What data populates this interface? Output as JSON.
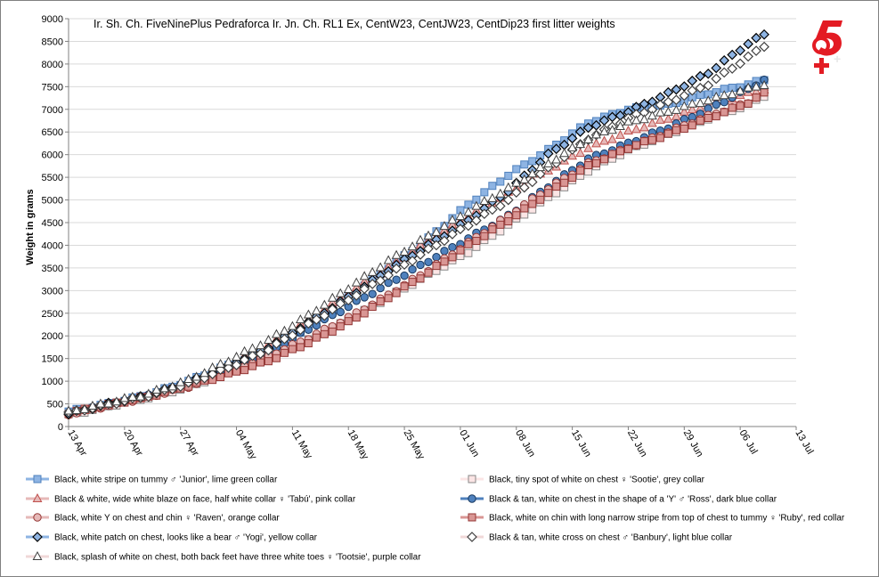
{
  "chart_data": {
    "type": "line",
    "title": "Ir. Sh. Ch. FiveNinePlus Pedraforca Ir. Jn. Ch. RL1 Ex, CentW23, CentJW23, CentDip23 first litter weights",
    "xlabel": "",
    "ylabel": "Weight in grams",
    "ylim": [
      0,
      9000
    ],
    "yticks": [
      "0",
      "500",
      "1000",
      "1500",
      "2000",
      "2500",
      "3000",
      "3500",
      "4000",
      "4500",
      "5000",
      "5500",
      "6000",
      "6500",
      "7000",
      "7500",
      "8000",
      "8500",
      "9000"
    ],
    "xticks": [
      "13 Apr",
      "20 Apr",
      "27 Apr",
      "04 May",
      "11 May",
      "18 May",
      "25 May",
      "01 Jun",
      "08 Jun",
      "15 Jun",
      "22 Jun",
      "29 Jun",
      "06 Jul",
      "13 Jul"
    ],
    "x_range_days": [
      0,
      91
    ],
    "grid": "horizontal",
    "legend_position": "bottom",
    "series": [
      {
        "name": "Black, white stripe on tummy ♂ 'Junior', lime green collar",
        "color": "#8eb4e3",
        "edge": "#4f81bd",
        "marker": "square",
        "x": [
          0,
          5,
          10,
          15,
          20,
          25,
          30,
          35,
          40,
          45,
          50,
          55,
          60,
          65,
          70,
          75,
          80,
          85,
          87
        ],
        "values": [
          330,
          500,
          700,
          1000,
          1350,
          1650,
          2200,
          2850,
          3500,
          4150,
          4900,
          5550,
          6100,
          6700,
          7000,
          7100,
          7350,
          7550,
          7650
        ]
      },
      {
        "name": "Black, tiny spot of white on chest ♀ 'Sootie', grey collar",
        "color": "#fbe5e5",
        "edge": "#888888",
        "marker": "square",
        "x": [
          0,
          5,
          10,
          15,
          20,
          25,
          30,
          35,
          40,
          45,
          50,
          55,
          60,
          65,
          70,
          75,
          80,
          85,
          87
        ],
        "values": [
          250,
          450,
          640,
          870,
          1200,
          1500,
          1900,
          2350,
          2850,
          3350,
          3850,
          4450,
          5050,
          5650,
          6100,
          6450,
          6800,
          7100,
          7300
        ]
      },
      {
        "name": "Black & white, wide white blaze on face, half white collar ♀ 'Tabú', pink collar",
        "color": "#e6b9b8",
        "edge": "#c0504d",
        "marker": "triangle",
        "x": [
          0,
          5,
          10,
          15,
          20,
          25,
          30,
          35,
          40,
          45,
          50,
          55,
          60,
          65,
          70,
          75,
          80,
          85,
          87
        ],
        "values": [
          300,
          480,
          680,
          960,
          1350,
          1800,
          2350,
          2950,
          3500,
          4100,
          4650,
          5150,
          5650,
          6150,
          6500,
          6800,
          7100,
          7350,
          7450
        ]
      },
      {
        "name": "Black & tan, white on chest in the shape of a 'Y' ♂ 'Ross', dark blue collar",
        "color": "#4f81bd",
        "edge": "#17375e",
        "marker": "circle",
        "x": [
          0,
          5,
          10,
          15,
          20,
          25,
          30,
          35,
          40,
          45,
          50,
          55,
          60,
          65,
          70,
          75,
          80,
          85,
          87
        ],
        "values": [
          290,
          480,
          680,
          950,
          1300,
          1650,
          2150,
          2650,
          3150,
          3650,
          4150,
          4650,
          5300,
          5900,
          6250,
          6600,
          7000,
          7450,
          7650
        ]
      },
      {
        "name": "Black, white Y on chest and chin ♀ 'Raven', orange collar",
        "color": "#e6b9b8",
        "edge": "#953735",
        "marker": "circle",
        "x": [
          0,
          5,
          10,
          15,
          20,
          25,
          30,
          35,
          40,
          45,
          50,
          55,
          60,
          65,
          70,
          75,
          80,
          85,
          87
        ],
        "values": [
          270,
          460,
          650,
          880,
          1200,
          1550,
          1950,
          2400,
          2900,
          3450,
          4050,
          4650,
          5250,
          5800,
          6150,
          6500,
          6850,
          7150,
          7400
        ]
      },
      {
        "name": "Black, white on chin with long narrow stripe from top of chest to tummy ♀ 'Ruby', red collar",
        "color": "#d99694",
        "edge": "#943634",
        "marker": "square",
        "x": [
          0,
          5,
          10,
          15,
          20,
          25,
          30,
          35,
          40,
          45,
          50,
          55,
          60,
          65,
          70,
          75,
          80,
          85,
          87
        ],
        "values": [
          300,
          480,
          660,
          900,
          1150,
          1450,
          1850,
          2300,
          2850,
          3400,
          4000,
          4550,
          5150,
          5750,
          6150,
          6450,
          6800,
          7150,
          7350
        ]
      },
      {
        "name": "Black, white patch on chest, looks like a bear ♂ 'Yogi', yellow collar",
        "color": "#8eb4e3",
        "edge": "#000000",
        "marker": "diamond",
        "x": [
          0,
          5,
          10,
          15,
          20,
          25,
          30,
          35,
          40,
          45,
          50,
          55,
          60,
          65,
          70,
          75,
          80,
          85,
          87
        ],
        "values": [
          280,
          500,
          690,
          970,
          1350,
          1750,
          2300,
          2850,
          3450,
          4000,
          4550,
          5200,
          6000,
          6600,
          6950,
          7350,
          7800,
          8450,
          8650
        ]
      },
      {
        "name": "Black & tan, white cross on chest ♂ 'Banbury', light blue collar",
        "color": "#ffffff",
        "edge": "#404040",
        "marker": "diamond",
        "x": [
          0,
          5,
          10,
          15,
          20,
          25,
          30,
          35,
          40,
          45,
          50,
          55,
          60,
          65,
          70,
          75,
          80,
          85,
          87
        ],
        "values": [
          300,
          490,
          680,
          950,
          1300,
          1700,
          2250,
          2800,
          3350,
          3900,
          4450,
          5000,
          5700,
          6350,
          6800,
          7150,
          7550,
          8150,
          8400
        ]
      },
      {
        "name": "Black, splash of white on chest, both back feet have three white toes ♀ 'Tootsie', purple collar",
        "color": "#ffffff",
        "edge": "#404040",
        "marker": "triangle",
        "x": [
          0,
          5,
          10,
          15,
          20,
          25,
          30,
          35,
          40,
          45,
          50,
          55,
          60,
          65,
          70,
          75,
          80,
          85,
          87
        ],
        "values": [
          320,
          520,
          720,
          1020,
          1450,
          1900,
          2450,
          3050,
          3650,
          4200,
          4750,
          5250,
          5800,
          6350,
          6700,
          6950,
          7200,
          7450,
          7550
        ]
      }
    ]
  },
  "logo": {
    "icon": "59-plus-logo-icon",
    "color": "#e31b23"
  }
}
